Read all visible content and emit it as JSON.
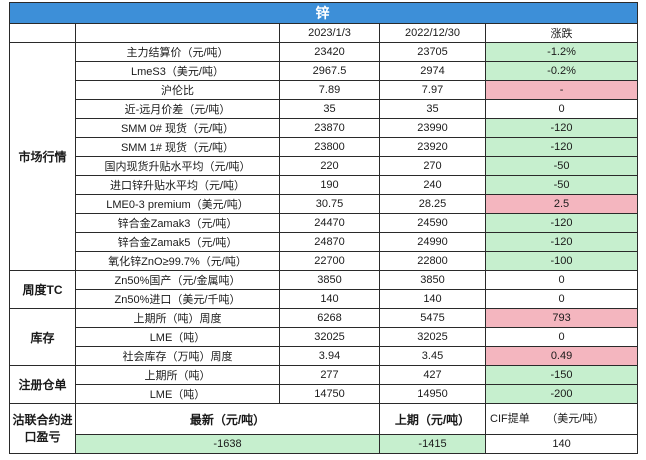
{
  "title": "锌",
  "header": {
    "col_date1": "2023/1/3",
    "col_date2": "2022/12/30",
    "col_change": "涨跌"
  },
  "sections": {
    "market": "市场行情",
    "tc": "周度TC",
    "inventory": "库存",
    "warrants": "注册仓单",
    "import": "沽联合约进口盈亏"
  },
  "rows": [
    {
      "label": "主力结算价（元/吨）",
      "v1": "23420",
      "v2": "23705",
      "chg": "-1.2%"
    },
    {
      "label": "LmeS3（美元/吨）",
      "v1": "2967.5",
      "v2": "2974",
      "chg": "-0.2%"
    },
    {
      "label": "沪伦比",
      "v1": "7.89",
      "v2": "7.97",
      "chg": "-"
    },
    {
      "label": "近-远月价差（元/吨）",
      "v1": "35",
      "v2": "35",
      "chg": "0"
    },
    {
      "label": "SMM 0# 现货（元/吨）",
      "v1": "23870",
      "v2": "23990",
      "chg": "-120"
    },
    {
      "label": "SMM 1# 现货（元/吨）",
      "v1": "23800",
      "v2": "23920",
      "chg": "-120"
    },
    {
      "label": "国内现货升贴水平均（元/吨）",
      "v1": "220",
      "v2": "270",
      "chg": "-50"
    },
    {
      "label": "进口锌升贴水平均（元/吨）",
      "v1": "190",
      "v2": "240",
      "chg": "-50"
    },
    {
      "label": "LME0-3 premium（美元/吨）",
      "v1": "30.75",
      "v2": "28.25",
      "chg": "2.5"
    },
    {
      "label": "锌合金Zamak3（元/吨）",
      "v1": "24470",
      "v2": "24590",
      "chg": "-120"
    },
    {
      "label": "锌合金Zamak5（元/吨）",
      "v1": "24870",
      "v2": "24990",
      "chg": "-120"
    },
    {
      "label": "氧化锌ZnO≥99.7%（元/吨）",
      "v1": "22700",
      "v2": "22800",
      "chg": "-100"
    },
    {
      "label": "Zn50%国产（元/金属吨）",
      "v1": "3850",
      "v2": "3850",
      "chg": "0"
    },
    {
      "label": "Zn50%进口（美元/千吨）",
      "v1": "140",
      "v2": "140",
      "chg": "0"
    },
    {
      "label": "上期所（吨）周度",
      "v1": "6268",
      "v2": "5475",
      "chg": "793"
    },
    {
      "label": "LME（吨）",
      "v1": "32025",
      "v2": "32025",
      "chg": "0"
    },
    {
      "label": "社会库存（万吨）周度",
      "v1": "3.94",
      "v2": "3.45",
      "chg": "0.49"
    },
    {
      "label": "上期所（吨）",
      "v1": "277",
      "v2": "427",
      "chg": "-150"
    },
    {
      "label": "LME（吨）",
      "v1": "14750",
      "v2": "14950",
      "chg": "-200"
    }
  ],
  "import_block": {
    "latest_label": "最新（元/吨）",
    "prev_label": "上期（元/吨）",
    "cif_label": "CIF提单　　（美元/吨）",
    "latest_value": "-1638",
    "prev_value": "-1415",
    "cif_value": "140"
  },
  "colors": {
    "title_bg": "#3d8fd8",
    "up": "#f4b6bf",
    "down": "#c6efce"
  }
}
